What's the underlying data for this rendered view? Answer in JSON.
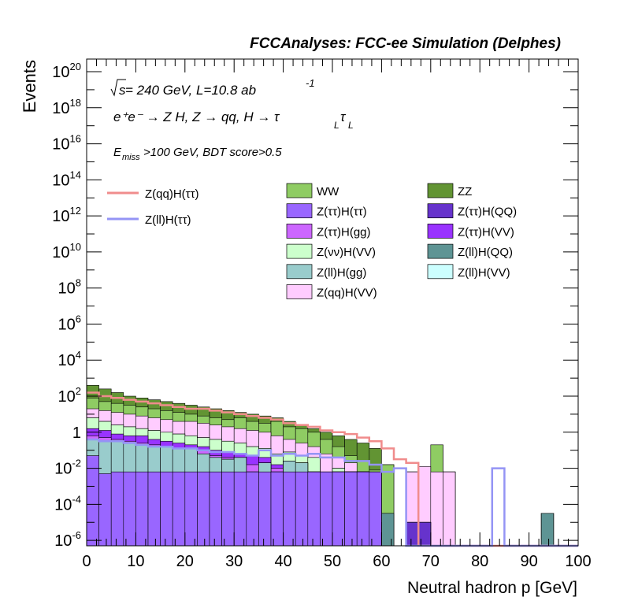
{
  "chart_data": {
    "type": "bar",
    "title": "FCCAnalyses: FCC-ee Simulation (Delphes)",
    "xlabel": "Neutral hadron p [GeV]",
    "ylabel": "Events",
    "xlim": [
      0,
      100
    ],
    "ylim_log10": [
      -6.3,
      20.7
    ],
    "yscale": "log",
    "bin_width": 2.5,
    "x_ticks": [
      "0",
      "10",
      "20",
      "30",
      "40",
      "50",
      "60",
      "70",
      "80",
      "90",
      "100"
    ],
    "y_tick_exponents": [
      -6,
      -4,
      -2,
      0,
      2,
      4,
      6,
      8,
      10,
      12,
      14,
      16,
      18,
      20
    ],
    "y_tick_labels": {
      "0": "1",
      "2": "10",
      "-2": "10",
      "-4": "10",
      "-6": "10"
    },
    "annotations": {
      "line1_sqrt": "s",
      "line1_rest": " = 240 GeV, L=10.8 ab",
      "line1_sup": "-1",
      "line2": "e⁺e⁻ → Z H, Z  → qq, H  → τ",
      "line2_sub1": "L",
      "line2_tau": "τ",
      "line2_sub2": "L",
      "line3_e": "E",
      "line3_sub": "miss",
      "line3_rest": ">100 GeV, BDT score>0.5"
    },
    "legend_lines": [
      {
        "name": "Z(qq)H(ττ)",
        "color": "#f08c8c"
      },
      {
        "name": "Z(ll)H(ττ)",
        "color": "#9494f5"
      }
    ],
    "legend_fills": [
      {
        "name": "WW",
        "color": "#8fcc63"
      },
      {
        "name": "ZZ",
        "color": "#629433"
      },
      {
        "name": "Z(ττ)H(ττ)",
        "color": "#9966ff"
      },
      {
        "name": "Z(ττ)H(QQ)",
        "color": "#6633cc"
      },
      {
        "name": "Z(ττ)H(gg)",
        "color": "#cc66ff"
      },
      {
        "name": "Z(ττ)H(VV)",
        "color": "#9933ff"
      },
      {
        "name": "Z(νν)H(VV)",
        "color": "#ccffcc"
      },
      {
        "name": "Z(ll)H(QQ)",
        "color": "#5e9494"
      },
      {
        "name": "Z(ll)H(gg)",
        "color": "#99cccc"
      },
      {
        "name": "Z(ll)H(VV)",
        "color": "#ccffff"
      },
      {
        "name": "Z(qq)H(VV)",
        "color": "#ffccff"
      }
    ],
    "stack_layers": {
      "colors": [
        "#9966ff",
        "#99cccc",
        "#6633cc",
        "#cc66ff",
        "#9933ff",
        "#ccffcc",
        "#5e9494",
        "#ffccff",
        "#8fcc63",
        "#629433"
      ],
      "edges": [
        [
          -1.3,
          -2.3,
          -2.2,
          -2.2,
          -2.2,
          -2.2,
          -2.2,
          -2.2,
          -2.2,
          -2.2,
          -2.2,
          -2.2,
          -2.2,
          -2.2,
          -2.2,
          -2.2,
          -2.2,
          -2.2,
          -2.2,
          -2.2,
          -2.2,
          -2.2,
          -2.2,
          -2.2,
          -6.3,
          -6.3,
          -6.3,
          -6.3,
          -6.3,
          -6.3,
          -6.3,
          -6.3,
          -6.3,
          -6.3,
          -6.3,
          -6.3,
          -6.3,
          -6.3,
          -6.3,
          -6.3
        ],
        [
          -0.4,
          -0.5,
          -0.5,
          -0.6,
          -0.7,
          -0.8,
          -0.8,
          -0.9,
          -0.9,
          -1.2,
          -1.4,
          -1.5,
          -1.4,
          -2.2,
          -1.7,
          -2.2,
          -1.6,
          -1.7,
          -2.2,
          -2.2,
          -2.2,
          -2.2,
          -2.2,
          -2.2,
          -6.3,
          -6.3,
          -6.3,
          -6.3,
          -6.3,
          -6.3,
          -6.3,
          -6.3,
          -6.3,
          -6.3,
          -6.3,
          -6.3,
          -6.3,
          -6.3,
          -6.3,
          -6.3
        ],
        [
          -0.4,
          -0.5,
          -0.5,
          -0.6,
          -0.7,
          -0.8,
          -0.8,
          -0.9,
          -0.9,
          -1.2,
          -1.4,
          -1.5,
          -1.4,
          -2.2,
          -1.7,
          -2.2,
          -1.6,
          -1.7,
          -2.2,
          -4.5,
          -2.2,
          -2.2,
          -2.2,
          -5.0,
          -6.3,
          -6.3,
          -5.0,
          -5.0,
          -6.3,
          -6.3,
          -6.3,
          -6.3,
          -6.3,
          -6.3,
          -6.3,
          -6.3,
          -6.3,
          -6.3,
          -6.3,
          -6.3
        ],
        [
          -0.2,
          -0.3,
          -0.4,
          -0.5,
          -0.6,
          -0.7,
          -0.8,
          -0.9,
          -0.9,
          -1.0,
          -1.3,
          -1.4,
          -1.4,
          -1.8,
          -1.7,
          -2.0,
          -1.6,
          -1.7,
          -2.2,
          -4.5,
          -2.2,
          -2.2,
          -2.2,
          -5.0,
          -6.3,
          -6.3,
          -5.0,
          -5.0,
          -6.3,
          -6.3,
          -6.3,
          -6.3,
          -6.3,
          -6.3,
          -6.3,
          -6.3,
          -6.3,
          -6.3,
          -6.3,
          -6.3
        ],
        [
          0.2,
          0.1,
          -0.1,
          -0.2,
          -0.2,
          -0.4,
          -0.5,
          -0.6,
          -0.7,
          -0.8,
          -1.0,
          -1.1,
          -1.2,
          -1.3,
          -1.4,
          -1.8,
          -1.6,
          -1.7,
          -2.2,
          -4.5,
          -2.2,
          -2.2,
          -2.2,
          -5.0,
          -6.3,
          -6.3,
          -5.0,
          -5.0,
          -6.3,
          -6.3,
          -6.3,
          -6.3,
          -6.3,
          -6.3,
          -6.3,
          -6.3,
          -6.3,
          -6.3,
          -6.3,
          -6.3
        ],
        [
          0.8,
          0.6,
          0.4,
          0.3,
          0.2,
          0.1,
          0.0,
          -0.1,
          -0.2,
          -0.3,
          -0.4,
          -0.5,
          -0.6,
          -0.8,
          -0.9,
          -1.2,
          -1.1,
          -1.3,
          -1.4,
          -4.0,
          -2.0,
          -2.2,
          -2.2,
          -5.0,
          -6.3,
          -6.3,
          -5.0,
          -5.0,
          -6.3,
          -6.3,
          -6.3,
          -6.3,
          -6.3,
          -6.3,
          -6.3,
          -6.3,
          -6.3,
          -6.3,
          -6.3,
          -6.3
        ],
        [
          0.8,
          0.6,
          0.4,
          0.3,
          0.2,
          0.1,
          0.0,
          -0.1,
          -0.2,
          -0.3,
          -0.4,
          -0.5,
          -0.6,
          -0.8,
          -0.9,
          -1.2,
          -1.1,
          -1.3,
          -1.4,
          -4.0,
          -2.0,
          -2.2,
          -2.2,
          -4.5,
          -4.5,
          -6.3,
          -5.0,
          -5.0,
          -6.3,
          -6.3,
          -6.3,
          -6.3,
          -6.3,
          -6.3,
          -6.3,
          -6.3,
          -6.3,
          -4.5,
          -6.3,
          -6.3
        ],
        [
          1.3,
          1.2,
          1.1,
          1.0,
          0.9,
          0.8,
          0.7,
          0.6,
          0.6,
          0.5,
          0.4,
          0.3,
          0.2,
          0.1,
          0.0,
          -0.2,
          -0.4,
          -0.6,
          -0.8,
          -1.2,
          -1.4,
          -1.7,
          -2.2,
          -4.5,
          -4.5,
          -6.3,
          -2.2,
          -1.9,
          -2.2,
          -2.2,
          -6.3,
          -6.3,
          -6.3,
          -6.3,
          -6.3,
          -6.3,
          -6.3,
          -4.5,
          -6.3,
          -6.3
        ],
        [
          1.9,
          1.7,
          1.6,
          1.5,
          1.4,
          1.3,
          1.2,
          1.1,
          1.0,
          0.9,
          0.8,
          0.7,
          0.8,
          0.6,
          0.5,
          0.6,
          0.3,
          0.2,
          0.0,
          -0.4,
          -0.8,
          -1.3,
          -1.6,
          -2.1,
          -1.8,
          -6.3,
          -2.2,
          -1.9,
          -0.7,
          -2.2,
          -6.3,
          -6.3,
          -6.3,
          -6.3,
          -6.3,
          -6.3,
          -6.3,
          -4.5,
          -6.3,
          -6.3
        ],
        [
          2.6,
          2.4,
          2.2,
          2.0,
          1.9,
          1.8,
          1.7,
          1.6,
          1.5,
          1.4,
          1.3,
          1.2,
          1.1,
          1.0,
          0.9,
          0.8,
          0.6,
          0.4,
          0.2,
          0.0,
          -0.2,
          -0.4,
          -0.6,
          -0.9,
          -1.8,
          -6.3,
          -2.2,
          -1.9,
          -0.7,
          -2.2,
          -6.3,
          -6.3,
          -6.3,
          -6.3,
          -6.3,
          -6.3,
          -6.3,
          -4.5,
          -6.3,
          -6.3
        ]
      ]
    },
    "series": [
      {
        "name": "Z(qq)H(ττ)",
        "type": "line",
        "color": "#f08c8c",
        "values_log10": [
          2.2,
          2.0,
          1.9,
          1.8,
          1.7,
          1.6,
          1.5,
          1.4,
          1.3,
          1.3,
          1.2,
          1.1,
          1.0,
          0.9,
          0.8,
          0.7,
          0.5,
          0.4,
          0.3,
          0.1,
          0.0,
          -0.1,
          -0.3,
          -0.5,
          -0.9,
          -1.5,
          -1.7,
          -6.3,
          -6.3,
          -6.3,
          -6.3,
          -6.3,
          -6.3,
          -6.3,
          -6.3,
          -6.3,
          -6.3,
          -6.3,
          -6.3,
          -6.3
        ]
      },
      {
        "name": "Z(ll)H(ττ)",
        "type": "line",
        "color": "#9494f5",
        "values_log10": [
          -0.4,
          -0.5,
          -0.5,
          -0.6,
          -0.7,
          -0.8,
          -0.8,
          -0.9,
          -0.9,
          -1.0,
          -1.1,
          -1.1,
          -1.2,
          -1.3,
          -1.0,
          -1.3,
          -1.2,
          -1.3,
          -1.2,
          -1.4,
          -1.4,
          -1.6,
          -1.6,
          -1.8,
          -2.2,
          -2.0,
          -6.3,
          -6.3,
          -6.3,
          -6.3,
          -6.3,
          -6.3,
          -6.3,
          -2.0,
          -6.3,
          -6.3,
          -6.3,
          -6.3,
          -6.3,
          -6.3
        ]
      }
    ]
  }
}
